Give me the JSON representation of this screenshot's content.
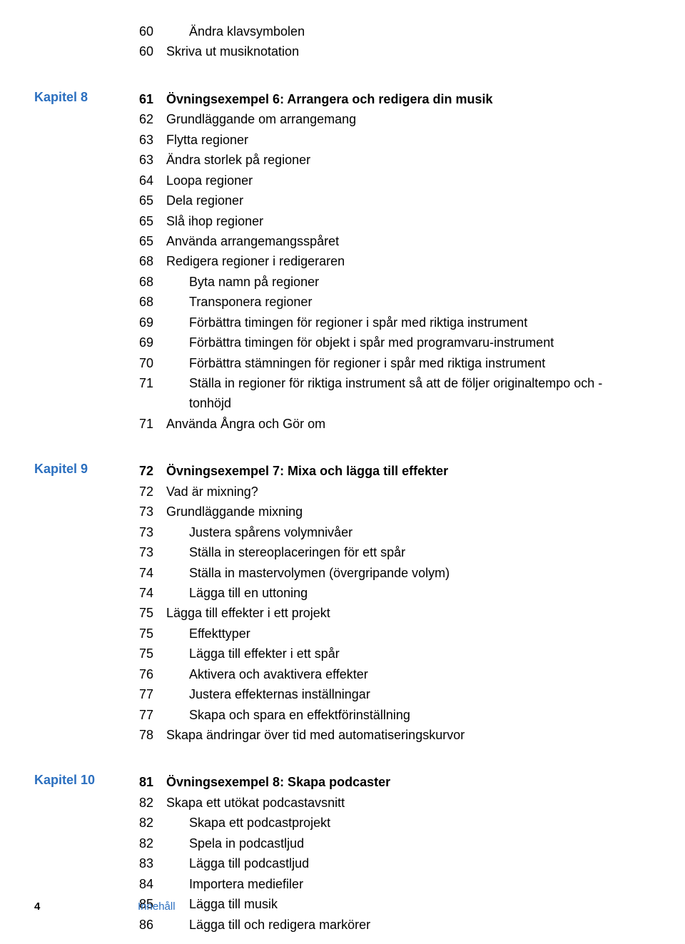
{
  "colors": {
    "link": "#2b6fbf",
    "text": "#000000",
    "background": "#ffffff"
  },
  "typography": {
    "body_fontsize": 18,
    "footer_fontsize": 15,
    "line_height": 1.58
  },
  "sections": [
    {
      "chapter": "",
      "entries": [
        {
          "page": "60",
          "title": "Ändra klavsymbolen",
          "indent": 1,
          "bold": false
        },
        {
          "page": "60",
          "title": "Skriva ut musiknotation",
          "indent": 0,
          "bold": false
        }
      ]
    },
    {
      "chapter": "Kapitel 8",
      "entries": [
        {
          "page": "61",
          "title": "Övningsexempel 6: Arrangera och redigera din musik",
          "indent": 0,
          "bold": true
        },
        {
          "page": "62",
          "title": "Grundläggande om arrangemang",
          "indent": 0,
          "bold": false
        },
        {
          "page": "63",
          "title": "Flytta regioner",
          "indent": 0,
          "bold": false
        },
        {
          "page": "63",
          "title": "Ändra storlek på regioner",
          "indent": 0,
          "bold": false
        },
        {
          "page": "64",
          "title": "Loopa regioner",
          "indent": 0,
          "bold": false
        },
        {
          "page": "65",
          "title": "Dela regioner",
          "indent": 0,
          "bold": false
        },
        {
          "page": "65",
          "title": "Slå ihop regioner",
          "indent": 0,
          "bold": false
        },
        {
          "page": "65",
          "title": "Använda arrangemangsspåret",
          "indent": 0,
          "bold": false
        },
        {
          "page": "68",
          "title": "Redigera regioner i redigeraren",
          "indent": 0,
          "bold": false
        },
        {
          "page": "68",
          "title": "Byta namn på regioner",
          "indent": 1,
          "bold": false
        },
        {
          "page": "68",
          "title": "Transponera regioner",
          "indent": 1,
          "bold": false
        },
        {
          "page": "69",
          "title": "Förbättra timingen för regioner i spår med riktiga instrument",
          "indent": 1,
          "bold": false
        },
        {
          "page": "69",
          "title": "Förbättra timingen för objekt i spår med programvaru-instrument",
          "indent": 1,
          "bold": false
        },
        {
          "page": "70",
          "title": "Förbättra stämningen för regioner i spår med riktiga instrument",
          "indent": 1,
          "bold": false
        },
        {
          "page": "71",
          "title": "Ställa in regioner för riktiga instrument så att de följer originaltempo och -tonhöjd",
          "indent": 1,
          "bold": false
        },
        {
          "page": "71",
          "title": "Använda Ångra och Gör om",
          "indent": 0,
          "bold": false
        }
      ]
    },
    {
      "chapter": "Kapitel 9",
      "entries": [
        {
          "page": "72",
          "title": "Övningsexempel 7: Mixa och lägga till effekter",
          "indent": 0,
          "bold": true
        },
        {
          "page": "72",
          "title": "Vad är mixning?",
          "indent": 0,
          "bold": false
        },
        {
          "page": "73",
          "title": "Grundläggande mixning",
          "indent": 0,
          "bold": false
        },
        {
          "page": "73",
          "title": "Justera spårens volymnivåer",
          "indent": 1,
          "bold": false
        },
        {
          "page": "73",
          "title": "Ställa in stereoplaceringen för ett spår",
          "indent": 1,
          "bold": false
        },
        {
          "page": "74",
          "title": "Ställa in mastervolymen (övergripande volym)",
          "indent": 1,
          "bold": false
        },
        {
          "page": "74",
          "title": "Lägga till en uttoning",
          "indent": 1,
          "bold": false
        },
        {
          "page": "75",
          "title": "Lägga till effekter i ett projekt",
          "indent": 0,
          "bold": false
        },
        {
          "page": "75",
          "title": "Effekttyper",
          "indent": 1,
          "bold": false
        },
        {
          "page": "75",
          "title": "Lägga till effekter i ett spår",
          "indent": 1,
          "bold": false
        },
        {
          "page": "76",
          "title": "Aktivera och avaktivera effekter",
          "indent": 1,
          "bold": false
        },
        {
          "page": "77",
          "title": "Justera effekternas inställningar",
          "indent": 1,
          "bold": false
        },
        {
          "page": "77",
          "title": "Skapa och spara en effektförinställning",
          "indent": 1,
          "bold": false
        },
        {
          "page": "78",
          "title": "Skapa ändringar över tid med automatiseringskurvor",
          "indent": 0,
          "bold": false
        }
      ]
    },
    {
      "chapter": "Kapitel 10",
      "entries": [
        {
          "page": "81",
          "title": "Övningsexempel 8: Skapa podcaster",
          "indent": 0,
          "bold": true
        },
        {
          "page": "82",
          "title": "Skapa ett utökat podcastavsnitt",
          "indent": 0,
          "bold": false
        },
        {
          "page": "82",
          "title": "Skapa ett podcastprojekt",
          "indent": 1,
          "bold": false
        },
        {
          "page": "82",
          "title": "Spela in podcastljud",
          "indent": 1,
          "bold": false
        },
        {
          "page": "83",
          "title": "Lägga till podcastljud",
          "indent": 1,
          "bold": false
        },
        {
          "page": "84",
          "title": "Importera mediefiler",
          "indent": 1,
          "bold": false
        },
        {
          "page": "85",
          "title": "Lägga till musik",
          "indent": 1,
          "bold": false
        },
        {
          "page": "86",
          "title": "Lägga till och redigera markörer",
          "indent": 1,
          "bold": false
        }
      ]
    }
  ],
  "footer": {
    "page_number": "4",
    "label": "Innehåll"
  }
}
